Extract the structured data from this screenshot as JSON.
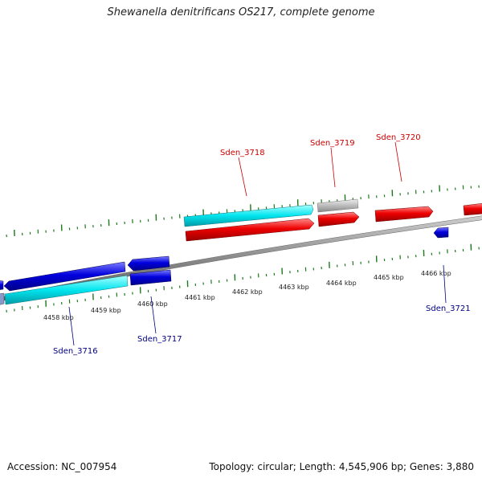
{
  "title": "Shewanella denitrificans OS217, complete genome",
  "footer": {
    "accession": "Accession: NC_007954",
    "topology": "Topology: circular; Length: 4,545,906 bp; Genes: 3,880"
  },
  "colors": {
    "forward_label": "#cc0000",
    "reverse_label": "#000080",
    "forward_gene": "#ee0000",
    "reverse_gene": "#0000dd",
    "cds_cyan": "#00e5ee",
    "pseudo_gray": "#bbbbbb",
    "tick": "#1a7a1a",
    "backbone": "#888888"
  },
  "scale_labels": [
    "4458 kbp",
    "4459 kbp",
    "4460 kbp",
    "4461 kbp",
    "4462 kbp",
    "4463 kbp",
    "4464 kbp",
    "4465 kbp",
    "4466 kbp"
  ],
  "gene_labels": {
    "top": [
      "Sden_3718",
      "Sden_3719",
      "Sden_3720"
    ],
    "bottom": [
      "Sden_3716",
      "Sden_3717",
      "Sden_3721"
    ]
  }
}
